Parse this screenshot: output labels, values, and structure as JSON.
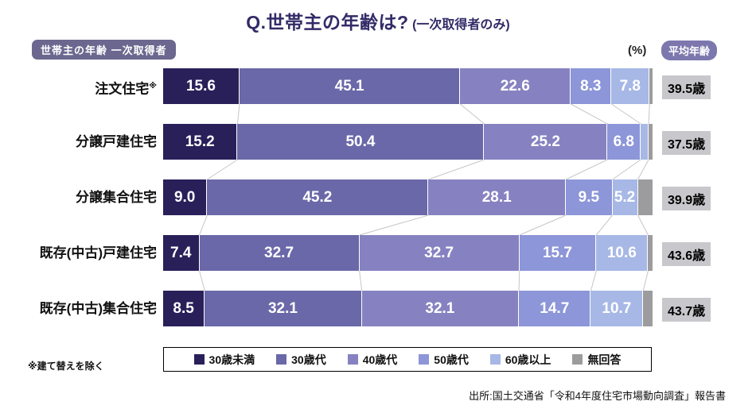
{
  "header": {
    "title_main": "Q.世帯主の年齢は?",
    "title_sub": "(一次取得者のみ)",
    "left_badge": "世帯主の年齢 一次取得者",
    "percent_label": "(%)",
    "avg_age_badge": "平均年齢"
  },
  "chart_data": {
    "type": "bar",
    "orientation": "horizontal-stacked",
    "unit": "%",
    "xlim": [
      0,
      100
    ],
    "label_min_value": 5,
    "series_labels": [
      "30歳未満",
      "30歳代",
      "40歳代",
      "50歳代",
      "60歳以上",
      "無回答"
    ],
    "series_colors": [
      "#29205a",
      "#6a68a8",
      "#8682c1",
      "#8c96d8",
      "#a7b8e6",
      "#9c9c9e"
    ],
    "rows": [
      {
        "label": "注文住宅",
        "label_sup": "※",
        "values": [
          15.6,
          45.1,
          22.6,
          8.3,
          7.8,
          0.6
        ],
        "avg": "39.5歳"
      },
      {
        "label": "分譲戸建住宅",
        "label_sup": "",
        "values": [
          15.2,
          50.4,
          25.2,
          6.8,
          1.6,
          0.8
        ],
        "avg": "37.5歳"
      },
      {
        "label": "分譲集合住宅",
        "label_sup": "",
        "values": [
          9.0,
          45.2,
          28.1,
          9.5,
          5.2,
          3.0
        ],
        "avg": "39.9歳"
      },
      {
        "label": "既存(中古)戸建住宅",
        "label_sup": "",
        "values": [
          7.4,
          32.7,
          32.7,
          15.7,
          10.6,
          0.9
        ],
        "avg": "43.6歳"
      },
      {
        "label": "既存(中古)集合住宅",
        "label_sup": "",
        "values": [
          8.5,
          32.1,
          32.1,
          14.7,
          10.7,
          1.9
        ],
        "avg": "43.7歳"
      }
    ],
    "connector_color": "#c6c6c8"
  },
  "footer": {
    "note": "※建て替えを除く",
    "source": "出所:国土交通省「令和4年度住宅市場動向調査」報告書"
  }
}
